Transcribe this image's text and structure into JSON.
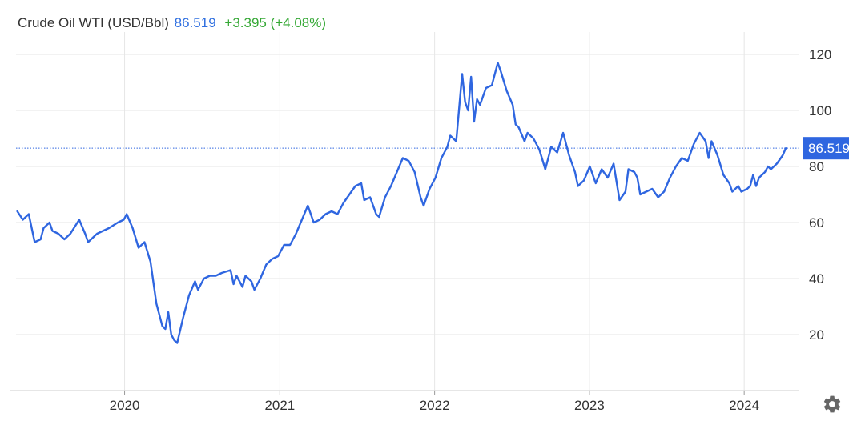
{
  "header": {
    "title": "Crude Oil WTI (USD/Bbl)",
    "price": "86.519",
    "change": "+3.395 (+4.08%)"
  },
  "colors": {
    "line": "#2f66e0",
    "grid": "#e6e6e6",
    "price_label_bg": "#2f66e0",
    "change_positive": "#35a835"
  },
  "settings_icon": "gear-icon",
  "chart_data": {
    "type": "line",
    "title": "Crude Oil WTI (USD/Bbl)",
    "xlabel": "",
    "ylabel": "",
    "ylim": [
      0,
      128
    ],
    "xlim": [
      "2019-04-20",
      "2024-05-10"
    ],
    "yticks": [
      20,
      40,
      60,
      80,
      100,
      120
    ],
    "xticks": [
      "2020",
      "2021",
      "2022",
      "2023",
      "2024"
    ],
    "grid": true,
    "y_axis_side": "right",
    "last_value_label": "86.519",
    "series": [
      {
        "points": [
          [
            "2019-04-23",
            64.0
          ],
          [
            "2019-05-06",
            61.0
          ],
          [
            "2019-05-20",
            63.0
          ],
          [
            "2019-06-03",
            53.0
          ],
          [
            "2019-06-17",
            54.0
          ],
          [
            "2019-06-24",
            58.0
          ],
          [
            "2019-07-08",
            60.0
          ],
          [
            "2019-07-15",
            57.0
          ],
          [
            "2019-07-29",
            56.0
          ],
          [
            "2019-08-05",
            55.0
          ],
          [
            "2019-08-12",
            54.0
          ],
          [
            "2019-08-26",
            56.0
          ],
          [
            "2019-09-16",
            61.0
          ],
          [
            "2019-09-30",
            56.0
          ],
          [
            "2019-10-07",
            53.0
          ],
          [
            "2019-10-28",
            56.0
          ],
          [
            "2019-11-11",
            57.0
          ],
          [
            "2019-11-25",
            58.0
          ],
          [
            "2019-12-16",
            60.0
          ],
          [
            "2019-12-30",
            61.0
          ],
          [
            "2020-01-06",
            63.0
          ],
          [
            "2020-01-20",
            58.0
          ],
          [
            "2020-02-03",
            51.0
          ],
          [
            "2020-02-17",
            53.0
          ],
          [
            "2020-03-02",
            46.0
          ],
          [
            "2020-03-16",
            31.0
          ],
          [
            "2020-03-30",
            23.0
          ],
          [
            "2020-04-06",
            22.0
          ],
          [
            "2020-04-13",
            28.0
          ],
          [
            "2020-04-20",
            20.0
          ],
          [
            "2020-04-27",
            18.0
          ],
          [
            "2020-05-04",
            17.0
          ],
          [
            "2020-05-18",
            26.0
          ],
          [
            "2020-06-01",
            34.0
          ],
          [
            "2020-06-15",
            39.0
          ],
          [
            "2020-06-22",
            36.0
          ],
          [
            "2020-07-06",
            40.0
          ],
          [
            "2020-07-20",
            41.0
          ],
          [
            "2020-08-03",
            41.0
          ],
          [
            "2020-08-17",
            42.0
          ],
          [
            "2020-09-07",
            43.0
          ],
          [
            "2020-09-14",
            38.0
          ],
          [
            "2020-09-21",
            41.0
          ],
          [
            "2020-10-05",
            37.0
          ],
          [
            "2020-10-12",
            41.0
          ],
          [
            "2020-10-26",
            39.0
          ],
          [
            "2020-11-02",
            36.0
          ],
          [
            "2020-11-16",
            40.0
          ],
          [
            "2020-11-30",
            45.0
          ],
          [
            "2020-12-14",
            47.0
          ],
          [
            "2020-12-28",
            48.0
          ],
          [
            "2021-01-11",
            52.0
          ],
          [
            "2021-01-25",
            52.0
          ],
          [
            "2021-02-08",
            56.0
          ],
          [
            "2021-02-22",
            61.0
          ],
          [
            "2021-03-08",
            66.0
          ],
          [
            "2021-03-22",
            60.0
          ],
          [
            "2021-04-05",
            61.0
          ],
          [
            "2021-04-19",
            63.0
          ],
          [
            "2021-05-03",
            64.0
          ],
          [
            "2021-05-17",
            63.0
          ],
          [
            "2021-05-31",
            67.0
          ],
          [
            "2021-06-14",
            70.0
          ],
          [
            "2021-06-28",
            73.0
          ],
          [
            "2021-07-12",
            74.0
          ],
          [
            "2021-07-19",
            68.0
          ],
          [
            "2021-08-02",
            69.0
          ],
          [
            "2021-08-16",
            63.0
          ],
          [
            "2021-08-23",
            62.0
          ],
          [
            "2021-09-06",
            69.0
          ],
          [
            "2021-09-20",
            73.0
          ],
          [
            "2021-10-04",
            78.0
          ],
          [
            "2021-10-18",
            83.0
          ],
          [
            "2021-11-01",
            82.0
          ],
          [
            "2021-11-15",
            78.0
          ],
          [
            "2021-11-29",
            69.0
          ],
          [
            "2021-12-06",
            66.0
          ],
          [
            "2021-12-20",
            72.0
          ],
          [
            "2022-01-03",
            76.0
          ],
          [
            "2022-01-17",
            83.0
          ],
          [
            "2022-01-31",
            87.0
          ],
          [
            "2022-02-07",
            91.0
          ],
          [
            "2022-02-21",
            89.0
          ],
          [
            "2022-03-07",
            113.0
          ],
          [
            "2022-03-14",
            103.0
          ],
          [
            "2022-03-21",
            100.0
          ],
          [
            "2022-03-28",
            112.0
          ],
          [
            "2022-04-04",
            96.0
          ],
          [
            "2022-04-11",
            104.0
          ],
          [
            "2022-04-18",
            102.0
          ],
          [
            "2022-05-02",
            108.0
          ],
          [
            "2022-05-16",
            109.0
          ],
          [
            "2022-05-30",
            117.0
          ],
          [
            "2022-06-06",
            114.0
          ],
          [
            "2022-06-20",
            107.0
          ],
          [
            "2022-07-04",
            102.0
          ],
          [
            "2022-07-11",
            95.0
          ],
          [
            "2022-07-18",
            94.0
          ],
          [
            "2022-08-01",
            89.0
          ],
          [
            "2022-08-08",
            92.0
          ],
          [
            "2022-08-22",
            90.0
          ],
          [
            "2022-09-05",
            86.0
          ],
          [
            "2022-09-19",
            79.0
          ],
          [
            "2022-10-03",
            87.0
          ],
          [
            "2022-10-17",
            85.0
          ],
          [
            "2022-10-31",
            92.0
          ],
          [
            "2022-11-14",
            84.0
          ],
          [
            "2022-11-28",
            78.0
          ],
          [
            "2022-12-05",
            73.0
          ],
          [
            "2022-12-19",
            75.0
          ],
          [
            "2023-01-02",
            80.0
          ],
          [
            "2023-01-16",
            74.0
          ],
          [
            "2023-01-30",
            79.0
          ],
          [
            "2023-02-13",
            76.0
          ],
          [
            "2023-02-27",
            81.0
          ],
          [
            "2023-03-13",
            68.0
          ],
          [
            "2023-03-27",
            71.0
          ],
          [
            "2023-04-03",
            79.0
          ],
          [
            "2023-04-17",
            78.0
          ],
          [
            "2023-04-24",
            76.0
          ],
          [
            "2023-05-01",
            70.0
          ],
          [
            "2023-05-15",
            71.0
          ],
          [
            "2023-05-29",
            72.0
          ],
          [
            "2023-06-12",
            69.0
          ],
          [
            "2023-06-26",
            71.0
          ],
          [
            "2023-07-10",
            76.0
          ],
          [
            "2023-07-24",
            80.0
          ],
          [
            "2023-08-07",
            83.0
          ],
          [
            "2023-08-21",
            82.0
          ],
          [
            "2023-09-04",
            88.0
          ],
          [
            "2023-09-18",
            92.0
          ],
          [
            "2023-10-02",
            89.0
          ],
          [
            "2023-10-09",
            83.0
          ],
          [
            "2023-10-16",
            89.0
          ],
          [
            "2023-10-30",
            84.0
          ],
          [
            "2023-11-13",
            77.0
          ],
          [
            "2023-11-27",
            74.0
          ],
          [
            "2023-12-04",
            71.0
          ],
          [
            "2023-12-18",
            73.0
          ],
          [
            "2023-12-25",
            71.0
          ],
          [
            "2024-01-08",
            72.0
          ],
          [
            "2024-01-15",
            73.0
          ],
          [
            "2024-01-22",
            77.0
          ],
          [
            "2024-01-29",
            73.0
          ],
          [
            "2024-02-05",
            76.0
          ],
          [
            "2024-02-19",
            78.0
          ],
          [
            "2024-02-26",
            80.0
          ],
          [
            "2024-03-04",
            79.0
          ],
          [
            "2024-03-18",
            81.0
          ],
          [
            "2024-04-01",
            84.0
          ],
          [
            "2024-04-08",
            86.519
          ]
        ]
      }
    ]
  }
}
